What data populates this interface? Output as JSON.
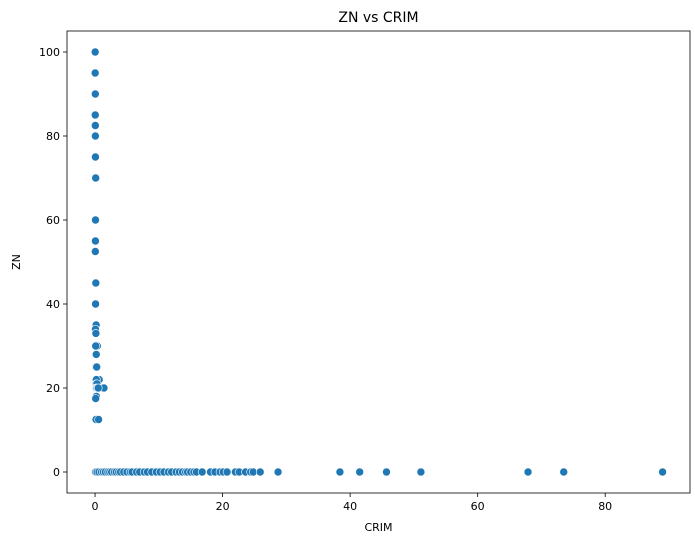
{
  "chart_data": {
    "type": "scatter",
    "title": "ZN vs CRIM",
    "xlabel": "CRIM",
    "ylabel": "ZN",
    "xlim": [
      -4.4,
      93.3
    ],
    "ylim": [
      -5,
      105
    ],
    "xticks": [
      0,
      20,
      40,
      60,
      80
    ],
    "yticks": [
      0,
      20,
      40,
      60,
      80,
      100
    ],
    "grid": false,
    "marker_color": "#1f77b4",
    "points": [
      [
        0.02,
        100
      ],
      [
        0.01,
        95
      ],
      [
        0.02,
        95
      ],
      [
        0.03,
        90
      ],
      [
        0.04,
        90
      ],
      [
        0.02,
        85
      ],
      [
        0.03,
        85
      ],
      [
        0.04,
        82.5
      ],
      [
        0.03,
        80
      ],
      [
        0.05,
        80
      ],
      [
        0.03,
        75
      ],
      [
        0.06,
        75
      ],
      [
        0.08,
        70
      ],
      [
        0.1,
        70
      ],
      [
        0.05,
        60
      ],
      [
        0.07,
        60
      ],
      [
        0.05,
        55
      ],
      [
        0.06,
        55
      ],
      [
        0.04,
        52.5
      ],
      [
        0.08,
        45
      ],
      [
        0.12,
        45
      ],
      [
        0.14,
        40
      ],
      [
        0.08,
        40
      ],
      [
        0.11,
        35
      ],
      [
        0.17,
        35
      ],
      [
        0.06,
        34
      ],
      [
        0.12,
        33
      ],
      [
        0.13,
        33
      ],
      [
        0.26,
        30
      ],
      [
        0.35,
        30
      ],
      [
        0.1,
        30
      ],
      [
        0.12,
        28
      ],
      [
        0.19,
        28
      ],
      [
        0.14,
        25
      ],
      [
        0.26,
        25
      ],
      [
        0.35,
        22
      ],
      [
        0.65,
        22
      ],
      [
        0.1,
        22
      ],
      [
        0.2,
        22
      ],
      [
        0.18,
        21
      ],
      [
        0.3,
        21
      ],
      [
        0.1,
        20
      ],
      [
        0.15,
        20
      ],
      [
        0.25,
        20
      ],
      [
        0.4,
        20
      ],
      [
        0.6,
        20
      ],
      [
        0.8,
        20
      ],
      [
        1.0,
        20
      ],
      [
        1.2,
        20
      ],
      [
        1.4,
        20
      ],
      [
        0.5,
        20
      ],
      [
        0.13,
        18
      ],
      [
        0.2,
        18
      ],
      [
        0.05,
        17.5
      ],
      [
        0.1,
        17.5
      ],
      [
        0.2,
        12.5
      ],
      [
        0.35,
        12.5
      ],
      [
        0.15,
        12.5
      ],
      [
        0.55,
        12.5
      ],
      [
        0.01,
        0
      ],
      [
        0.1,
        0
      ],
      [
        0.3,
        0
      ],
      [
        0.6,
        0
      ],
      [
        1.0,
        0
      ],
      [
        1.3,
        0
      ],
      [
        1.6,
        0
      ],
      [
        2.0,
        0
      ],
      [
        2.3,
        0
      ],
      [
        2.6,
        0
      ],
      [
        3.0,
        0
      ],
      [
        3.3,
        0
      ],
      [
        3.7,
        0
      ],
      [
        4.0,
        0
      ],
      [
        4.5,
        0
      ],
      [
        5.0,
        0
      ],
      [
        5.5,
        0
      ],
      [
        5.8,
        0
      ],
      [
        6.5,
        0
      ],
      [
        7.0,
        0
      ],
      [
        7.7,
        0
      ],
      [
        8.2,
        0
      ],
      [
        8.9,
        0
      ],
      [
        9.6,
        0
      ],
      [
        10.2,
        0
      ],
      [
        10.8,
        0
      ],
      [
        11.5,
        0
      ],
      [
        12.0,
        0
      ],
      [
        12.7,
        0
      ],
      [
        13.2,
        0
      ],
      [
        13.7,
        0
      ],
      [
        14.2,
        0
      ],
      [
        14.5,
        0
      ],
      [
        15.0,
        0
      ],
      [
        15.5,
        0
      ],
      [
        15.9,
        0
      ],
      [
        16.8,
        0
      ],
      [
        18.1,
        0
      ],
      [
        18.8,
        0
      ],
      [
        19.6,
        0
      ],
      [
        20.1,
        0
      ],
      [
        20.7,
        0
      ],
      [
        22.0,
        0
      ],
      [
        22.6,
        0
      ],
      [
        23.6,
        0
      ],
      [
        24.4,
        0
      ],
      [
        24.8,
        0
      ],
      [
        25.9,
        0
      ],
      [
        28.7,
        0
      ],
      [
        38.4,
        0
      ],
      [
        41.5,
        0
      ],
      [
        45.7,
        0
      ],
      [
        51.1,
        0
      ],
      [
        67.9,
        0
      ],
      [
        73.5,
        0
      ],
      [
        89.0,
        0
      ]
    ]
  }
}
